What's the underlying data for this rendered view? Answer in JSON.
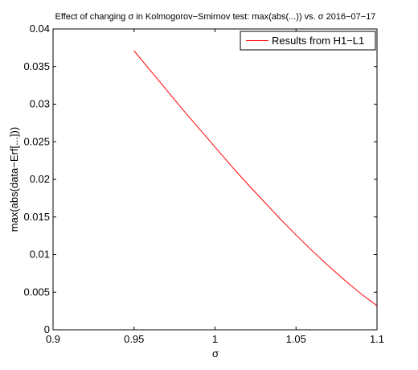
{
  "chart_data": {
    "type": "line",
    "title": "Effect of changing σ in Kolmogorov−Smirnov test: max(abs(...)) vs. σ 2016−07−17",
    "xlabel": "σ",
    "ylabel": "max(abs(data−Erf[...]))",
    "xlim": [
      0.9,
      1.1
    ],
    "ylim": [
      0,
      0.04
    ],
    "xticks": [
      "0.9",
      "0.95",
      "1",
      "1.05",
      "1.1"
    ],
    "xtick_values": [
      0.9,
      0.95,
      1.0,
      1.05,
      1.1
    ],
    "yticks": [
      "0",
      "0.005",
      "0.01",
      "0.015",
      "0.02",
      "0.025",
      "0.03",
      "0.035",
      "0.04"
    ],
    "ytick_values": [
      0,
      0.005,
      0.01,
      0.015,
      0.02,
      0.025,
      0.03,
      0.035,
      0.04
    ],
    "grid": false,
    "legend_position": "top-right",
    "series": [
      {
        "name": "Results from H1−L1",
        "color": "#ff0000",
        "x": [
          0.95,
          0.96,
          0.97,
          0.98,
          0.99,
          1.0,
          1.01,
          1.02,
          1.03,
          1.04,
          1.05,
          1.06,
          1.07,
          1.08,
          1.09,
          1.1
        ],
        "y": [
          0.0371,
          0.0345,
          0.0319,
          0.0293,
          0.0268,
          0.0243,
          0.0218,
          0.0194,
          0.0171,
          0.0148,
          0.0126,
          0.0105,
          0.0085,
          0.0066,
          0.0048,
          0.0032
        ]
      }
    ]
  }
}
